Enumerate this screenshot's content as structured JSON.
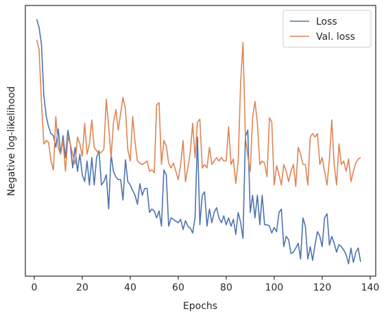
{
  "chart_data": {
    "type": "line",
    "xlabel": "Epochs",
    "ylabel": "Negative log-likelihood",
    "x": [
      1,
      2,
      3,
      4,
      5,
      6,
      7,
      8,
      9,
      10,
      11,
      12,
      13,
      14,
      15,
      16,
      17,
      18,
      19,
      20,
      21,
      22,
      23,
      24,
      25,
      26,
      27,
      28,
      29,
      30,
      31,
      32,
      33,
      34,
      35,
      36,
      37,
      38,
      39,
      40,
      41,
      42,
      43,
      44,
      45,
      46,
      47,
      48,
      49,
      50,
      51,
      52,
      53,
      54,
      55,
      56,
      57,
      58,
      59,
      60,
      61,
      62,
      63,
      64,
      65,
      66,
      67,
      68,
      69,
      70,
      71,
      72,
      73,
      74,
      75,
      76,
      77,
      78,
      79,
      80,
      81,
      82,
      83,
      84,
      85,
      86,
      87,
      88,
      89,
      90,
      91,
      92,
      93,
      94,
      95,
      96,
      97,
      98,
      99,
      100,
      101,
      102,
      103,
      104,
      105,
      106,
      107,
      108,
      109,
      110,
      111,
      112,
      113,
      114,
      115,
      116,
      117,
      118,
      119,
      120,
      121,
      122,
      123,
      124,
      125,
      126,
      127,
      128,
      129,
      130,
      131,
      132,
      133,
      134,
      135,
      136
    ],
    "series": [
      {
        "name": "Loss",
        "color": "#4c72b0",
        "values": [
          375,
          363,
          338,
          263,
          233,
          218,
          208,
          205,
          188,
          215,
          178,
          205,
          173,
          213,
          193,
          158,
          188,
          153,
          178,
          148,
          138,
          168,
          133,
          173,
          133,
          173,
          183,
          133,
          138,
          148,
          98,
          178,
          153,
          145,
          141,
          141,
          111,
          170,
          138,
          133,
          125,
          118,
          105,
          135,
          118,
          128,
          128,
          93,
          98,
          95,
          85,
          95,
          73,
          155,
          148,
          73,
          85,
          83,
          80,
          78,
          83,
          68,
          81,
          73,
          70,
          63,
          85,
          203,
          75,
          118,
          123,
          73,
          98,
          78,
          93,
          100,
          85,
          78,
          88,
          75,
          85,
          73,
          83,
          61,
          93,
          78,
          55,
          203,
          213,
          93,
          118,
          85,
          118,
          75,
          118,
          75,
          75,
          73,
          63,
          71,
          65,
          93,
          98,
          43,
          58,
          53,
          33,
          35,
          41,
          48,
          25,
          85,
          73,
          25,
          43,
          23,
          45,
          65,
          58,
          43,
          85,
          91,
          45,
          58,
          48,
          35,
          46,
          43,
          38,
          31,
          18,
          41,
          20,
          35,
          41,
          21
        ]
      },
      {
        "name": "Val. loss",
        "color": "#dd8452",
        "values": [
          345,
          331,
          253,
          193,
          198,
          195,
          168,
          155,
          233,
          188,
          178,
          198,
          153,
          203,
          193,
          178,
          163,
          203,
          193,
          175,
          223,
          178,
          193,
          228,
          188,
          183,
          178,
          181,
          185,
          258,
          218,
          173,
          223,
          243,
          213,
          238,
          261,
          243,
          185,
          168,
          233,
          195,
          168,
          165,
          163,
          165,
          168,
          153,
          155,
          151,
          250,
          253,
          163,
          198,
          190,
          165,
          158,
          165,
          153,
          141,
          163,
          198,
          138,
          158,
          181,
          223,
          173,
          225,
          229,
          158,
          163,
          158,
          188,
          163,
          168,
          173,
          168,
          173,
          168,
          168,
          218,
          163,
          171,
          135,
          168,
          283,
          341,
          203,
          175,
          153,
          231,
          255,
          223,
          163,
          168,
          165,
          145,
          231,
          225,
          133,
          161,
          148,
          133,
          163,
          153,
          138,
          153,
          163,
          131,
          188,
          178,
          163,
          163,
          133,
          203,
          208,
          203,
          208,
          163,
          173,
          153,
          133,
          171,
          228,
          163,
          133,
          193,
          163,
          168,
          153,
          171,
          138,
          153,
          165,
          171,
          173
        ]
      }
    ],
    "xlim": [
      -3.7,
      142.3
    ],
    "xticks": [
      0,
      20,
      40,
      60,
      80,
      100,
      120,
      140
    ],
    "ylim": [
      0,
      395
    ],
    "legend": "upper right"
  }
}
